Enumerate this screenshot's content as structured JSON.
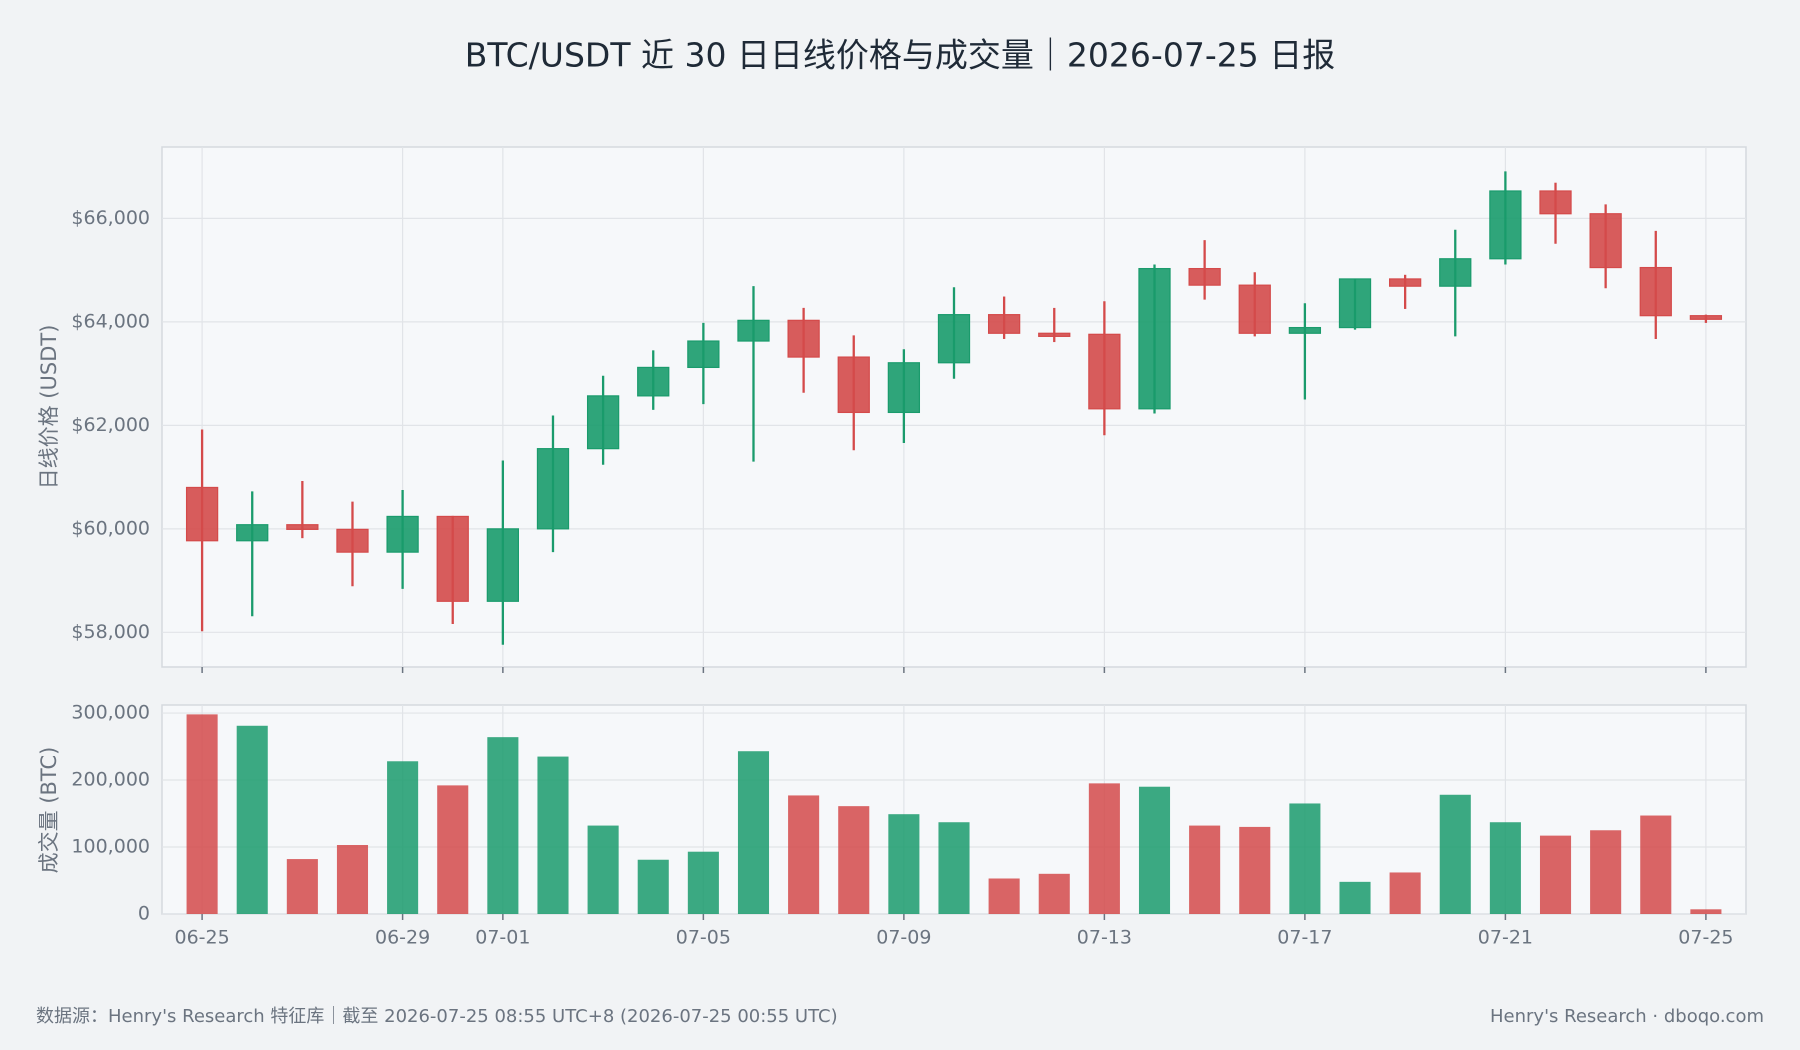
{
  "chart_data": {
    "type": "candlestick",
    "title": "BTC/USDT 近 30 日日线价格与成交量｜2026-07-25 日报",
    "categories": [
      "06-25",
      null,
      null,
      null,
      "06-29",
      null,
      "07-01",
      null,
      null,
      null,
      "07-05",
      null,
      null,
      null,
      "07-09",
      null,
      null,
      null,
      "07-13",
      null,
      null,
      null,
      "07-17",
      null,
      null,
      null,
      "07-21",
      null,
      null,
      null,
      "07-25"
    ],
    "open": [
      60800,
      59770,
      60080,
      59990,
      59550,
      60240,
      58600,
      60000,
      61550,
      62570,
      63120,
      63630,
      64030,
      63320,
      62250,
      63210,
      64140,
      63780,
      63760,
      62320,
      65030,
      64710,
      63780,
      63890,
      64830,
      64690,
      65220,
      66530,
      66090,
      65050,
      64120
    ],
    "high": [
      61920,
      60725,
      60925,
      60525,
      60750,
      60250,
      61320,
      62190,
      62960,
      63450,
      63980,
      64690,
      64270,
      63740,
      63470,
      64670,
      64490,
      64270,
      64400,
      65110,
      65580,
      64960,
      64360,
      64830,
      64910,
      65780,
      66910,
      66690,
      66270,
      65760,
      64140
    ],
    "low": [
      58020,
      58310,
      59820,
      58890,
      58840,
      58160,
      57760,
      59550,
      61240,
      62300,
      62410,
      61300,
      62630,
      61520,
      61660,
      62900,
      63670,
      63610,
      61810,
      62230,
      64430,
      63720,
      62500,
      63850,
      64250,
      63720,
      65110,
      65510,
      64650,
      63670,
      63980
    ],
    "close": [
      59770,
      60080,
      59990,
      59550,
      60240,
      58600,
      60000,
      61550,
      62570,
      63120,
      63630,
      64030,
      63320,
      62250,
      63210,
      64140,
      63780,
      63720,
      62320,
      65030,
      64710,
      63780,
      63890,
      64830,
      64690,
      65220,
      66530,
      66090,
      65050,
      64120,
      64050
    ],
    "up_color": "#1a9b6c",
    "down_color": "#d44a4a",
    "ylabel": "日线价格 (USDT)",
    "ylim": [
      57330,
      67380
    ],
    "yticks": [
      {
        "value": 58000,
        "label": "$58,000"
      },
      {
        "value": 60000,
        "label": "$60,000"
      },
      {
        "value": 62000,
        "label": "$62,000"
      },
      {
        "value": 64000,
        "label": "$64,000"
      },
      {
        "value": 66000,
        "label": "$66,000"
      }
    ],
    "grid": true,
    "volume": {
      "ylabel": "成交量 (BTC)",
      "values": [
        298000,
        281000,
        82000,
        103000,
        228000,
        192000,
        264000,
        235000,
        132000,
        81000,
        93000,
        243000,
        177000,
        161000,
        149000,
        137000,
        53000,
        60000,
        195000,
        190000,
        132000,
        130000,
        165000,
        48000,
        62000,
        178000,
        137000,
        117000,
        125000,
        147000,
        7000
      ],
      "ylim": [
        0,
        312000
      ],
      "yticks": [
        0,
        {
          "value": 100000,
          "label": "100,000"
        },
        {
          "value": 200000,
          "label": "200,000"
        },
        {
          "value": 300000,
          "label": "300,000"
        }
      ]
    }
  },
  "footer": {
    "source": "数据源：Henry's Research 特征库｜截至 2026-07-25 08:55 UTC+8 (2026-07-25 00:55 UTC)",
    "brand": "Henry's Research · dboqo.com"
  }
}
